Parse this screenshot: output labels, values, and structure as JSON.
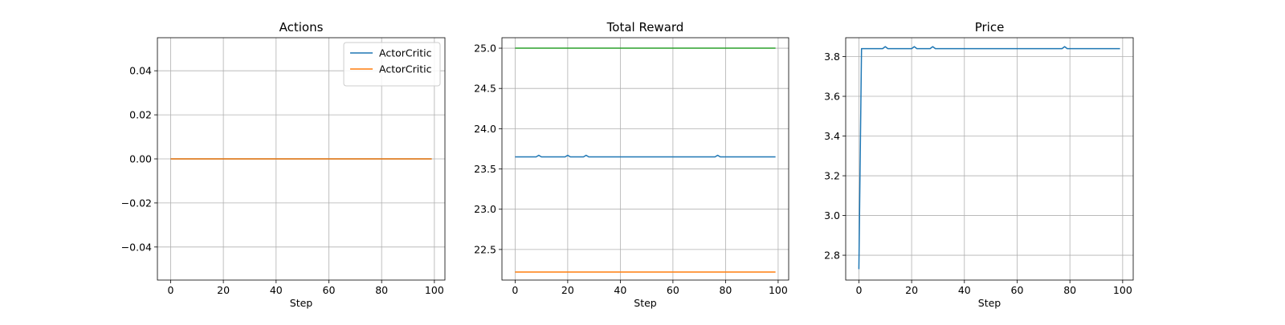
{
  "chart_data": [
    {
      "type": "line",
      "title": "Actions",
      "xlabel": "Step",
      "ylabel": "",
      "xlim": [
        -5,
        104
      ],
      "ylim": [
        -0.055,
        0.055
      ],
      "xticks": [
        0,
        20,
        40,
        60,
        80,
        100
      ],
      "yticks": [
        -0.04,
        -0.02,
        0.0,
        0.02,
        0.04
      ],
      "ytick_labels": [
        "−0.04",
        "−0.02",
        "0.00",
        "0.02",
        "0.04"
      ],
      "grid": true,
      "legend": "top-right",
      "series": [
        {
          "name": "ActorCritic",
          "color": "#1f77b4",
          "points": [
            [
              0,
              0
            ],
            [
              99,
              0
            ]
          ]
        },
        {
          "name": "ActorCritic",
          "color": "#ff7f0e",
          "points": [
            [
              0,
              0
            ],
            [
              99,
              0
            ]
          ]
        }
      ]
    },
    {
      "type": "line",
      "title": "Total Reward",
      "xlabel": "Step",
      "ylabel": "",
      "xlim": [
        -5,
        104
      ],
      "ylim": [
        22.12,
        25.13
      ],
      "xticks": [
        0,
        20,
        40,
        60,
        80,
        100
      ],
      "yticks": [
        22.5,
        23.0,
        23.5,
        24.0,
        24.5,
        25.0
      ],
      "ytick_labels": [
        "22.5",
        "23.0",
        "23.5",
        "24.0",
        "24.5",
        "25.0"
      ],
      "grid": true,
      "legend": "",
      "series": [
        {
          "color": "#1f77b4",
          "points": [
            [
              0,
              23.65
            ],
            [
              8,
              23.65
            ],
            [
              9,
              23.67
            ],
            [
              10,
              23.65
            ],
            [
              19,
              23.65
            ],
            [
              20,
              23.67
            ],
            [
              21,
              23.65
            ],
            [
              26,
              23.65
            ],
            [
              27,
              23.67
            ],
            [
              28,
              23.65
            ],
            [
              76,
              23.65
            ],
            [
              77,
              23.67
            ],
            [
              78,
              23.65
            ],
            [
              99,
              23.65
            ]
          ]
        },
        {
          "color": "#ff7f0e",
          "points": [
            [
              0,
              22.22
            ],
            [
              99,
              22.22
            ]
          ]
        },
        {
          "color": "#2ca02c",
          "points": [
            [
              0,
              25.0
            ],
            [
              99,
              25.0
            ]
          ]
        }
      ]
    },
    {
      "type": "line",
      "title": "Price",
      "xlabel": "Step",
      "ylabel": "",
      "xlim": [
        -5,
        104
      ],
      "ylim": [
        2.675,
        3.895
      ],
      "xticks": [
        0,
        20,
        40,
        60,
        80,
        100
      ],
      "yticks": [
        2.8,
        3.0,
        3.2,
        3.4,
        3.6,
        3.8
      ],
      "ytick_labels": [
        "2.8",
        "3.0",
        "3.2",
        "3.4",
        "3.6",
        "3.8"
      ],
      "grid": true,
      "legend": "",
      "series": [
        {
          "color": "#1f77b4",
          "points": [
            [
              0,
              2.73
            ],
            [
              1,
              3.84
            ],
            [
              9,
              3.84
            ],
            [
              10,
              3.85
            ],
            [
              11,
              3.84
            ],
            [
              20,
              3.84
            ],
            [
              21,
              3.85
            ],
            [
              22,
              3.84
            ],
            [
              27,
              3.84
            ],
            [
              28,
              3.85
            ],
            [
              29,
              3.84
            ],
            [
              77,
              3.84
            ],
            [
              78,
              3.85
            ],
            [
              79,
              3.84
            ],
            [
              99,
              3.84
            ]
          ]
        }
      ]
    }
  ]
}
